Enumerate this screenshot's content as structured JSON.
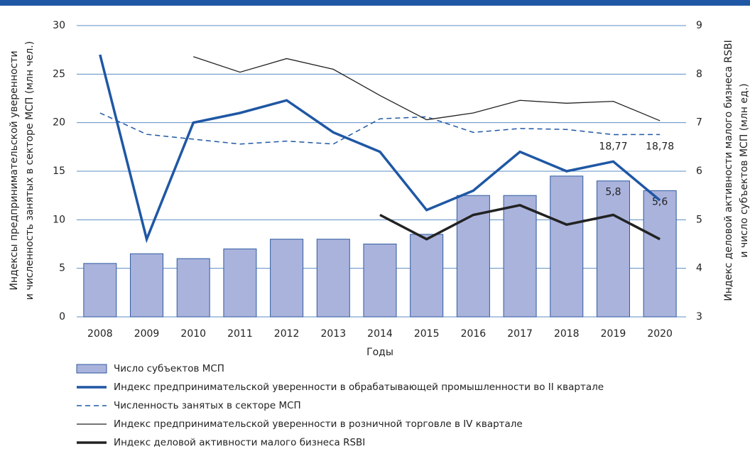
{
  "chart_data": {
    "type": "combo",
    "categories": [
      "2008",
      "2009",
      "2010",
      "2011",
      "2012",
      "2013",
      "2014",
      "2015",
      "2016",
      "2017",
      "2018",
      "2019",
      "2020"
    ],
    "x_label": "Годы",
    "y_label": [
      "Индексы предпринимательской уверенности",
      "и численность занятых в секторе МСП (млн чел.)"
    ],
    "y2_label": [
      "Индекс деловой активности малого бизнеса RSBI",
      "и число субъектов МСП (млн ед.)"
    ],
    "ylim": [
      0,
      30
    ],
    "yticks": [
      0,
      5,
      10,
      15,
      20,
      25,
      30
    ],
    "y2lim": [
      3,
      9
    ],
    "y2ticks": [
      3,
      4,
      5,
      6,
      7,
      8,
      9
    ],
    "grid": true,
    "series": [
      {
        "name": "Число субъектов МСП",
        "type": "bar",
        "axis": "y2",
        "color": "#aab3dc",
        "edge_color": "#2e5aa0",
        "values": [
          4.1,
          4.3,
          4.2,
          4.4,
          4.6,
          4.6,
          4.5,
          4.7,
          5.5,
          5.5,
          5.9,
          5.8,
          5.6
        ],
        "value_labels": [
          null,
          null,
          null,
          null,
          null,
          null,
          null,
          null,
          null,
          null,
          null,
          "5,8",
          "5,6"
        ]
      },
      {
        "name": "Индекс предпринимательской уверенности в обрабатывающей промышленности во II квартале",
        "type": "line",
        "axis": "y",
        "color": "#1f57a4",
        "line_width": 3.5,
        "dashed": false,
        "values": [
          27,
          8,
          20,
          21,
          22.3,
          19,
          17,
          11,
          13,
          17,
          15,
          16,
          12
        ]
      },
      {
        "name": "Численность занятых в секторе МСП",
        "type": "line",
        "axis": "y",
        "color": "#1f57a4",
        "line_width": 1.5,
        "dashed": true,
        "values": [
          21,
          18.8,
          18.3,
          17.8,
          18.1,
          17.8,
          20.4,
          20.6,
          19,
          19.4,
          19.3,
          18.77,
          18.78
        ],
        "value_labels": [
          null,
          null,
          null,
          null,
          null,
          null,
          null,
          null,
          null,
          null,
          null,
          "18,77",
          "18,78"
        ]
      },
      {
        "name": "Индекс предпринимательской уверенности в розничной торговле в IV квартале",
        "type": "line",
        "axis": "y",
        "color": "#222222",
        "line_width": 1.3,
        "dashed": false,
        "values": [
          null,
          null,
          26.8,
          25.2,
          26.6,
          25.5,
          22.8,
          20.3,
          21,
          22.3,
          22,
          22.2,
          20.2
        ]
      },
      {
        "name": "Индекс деловой активности малого бизнеса RSBI",
        "type": "line",
        "axis": "y2",
        "color": "#222222",
        "line_width": 3.5,
        "dashed": false,
        "values": [
          null,
          null,
          null,
          null,
          null,
          null,
          5.1,
          4.6,
          5.1,
          5.3,
          4.9,
          5.1,
          4.6
        ]
      }
    ]
  }
}
